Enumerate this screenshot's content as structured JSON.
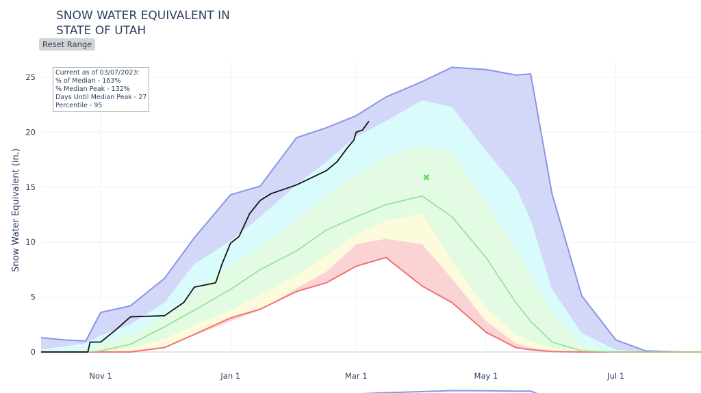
{
  "title_line1": "SNOW WATER EQUIVALENT IN",
  "title_line2": "STATE OF UTAH",
  "reset_button": "Reset Range",
  "annotation": [
    "Current as of 03/07/2023:",
    "% of Median - 163%",
    "% Median Peak - 132%",
    "Days Until Median Peak - 27",
    "Percentile - 95"
  ],
  "chart_data": {
    "type": "area",
    "title": "SNOW WATER EQUIVALENT IN STATE OF UTAH",
    "xlabel": "",
    "ylabel": "Snow Water Equivalent (in.)",
    "xlim": [
      "2022-10-04",
      "2023-08-10"
    ],
    "ylim": [
      0,
      26.5
    ],
    "grid": true,
    "legend": "none",
    "x_ticks": [
      {
        "date": "2022-11-01",
        "label": "Nov 1"
      },
      {
        "date": "2023-01-01",
        "label": "Jan 1"
      },
      {
        "date": "2023-03-01",
        "label": "Mar 1"
      },
      {
        "date": "2023-05-01",
        "label": "May 1"
      },
      {
        "date": "2023-07-01",
        "label": "Jul 1"
      }
    ],
    "y_ticks": [
      0,
      5,
      10,
      15,
      20,
      25
    ],
    "band_x": [
      "2022-10-04",
      "2022-10-15",
      "2022-10-25",
      "2022-11-01",
      "2022-11-15",
      "2022-12-01",
      "2022-12-15",
      "2023-01-01",
      "2023-01-15",
      "2023-02-01",
      "2023-02-15",
      "2023-03-01",
      "2023-03-15",
      "2023-04-01",
      "2023-04-15",
      "2023-05-01",
      "2023-05-15",
      "2023-05-22",
      "2023-06-01",
      "2023-06-15",
      "2023-07-01",
      "2023-07-15",
      "2023-08-01",
      "2023-08-10"
    ],
    "bands": {
      "min": [
        0,
        0,
        0,
        0,
        0,
        0.4,
        1.6,
        3.1,
        3.9,
        5.5,
        6.3,
        7.8,
        8.6,
        6.0,
        4.5,
        1.8,
        0.4,
        0.2,
        0.05,
        0,
        0,
        0,
        0,
        0
      ],
      "p10": [
        0,
        0,
        0,
        0,
        0.1,
        0.5,
        1.5,
        2.8,
        3.8,
        5.8,
        7.3,
        9.8,
        10.3,
        9.8,
        6.7,
        2.8,
        0.8,
        0.4,
        0.1,
        0,
        0,
        0,
        0,
        0
      ],
      "p30": [
        0,
        0,
        0,
        0,
        0.3,
        1.2,
        2.4,
        3.8,
        5.2,
        7.0,
        8.8,
        10.7,
        11.9,
        12.6,
        8.2,
        4.0,
        1.6,
        1.0,
        0.3,
        0,
        0,
        0,
        0,
        0
      ],
      "median": [
        0,
        0,
        0,
        0.1,
        0.7,
        2.3,
        3.8,
        5.7,
        7.5,
        9.2,
        11.1,
        12.3,
        13.4,
        14.2,
        12.3,
        8.6,
        4.5,
        2.8,
        0.9,
        0.1,
        0,
        0,
        0,
        0
      ],
      "p70": [
        0,
        0,
        0.2,
        0.7,
        1.5,
        3.2,
        5.5,
        7.8,
        9.6,
        12.0,
        14.3,
        16.1,
        17.7,
        18.8,
        18.2,
        13.6,
        9.4,
        7.0,
        3.6,
        0.6,
        0,
        0,
        0,
        0
      ],
      "p90": [
        0.2,
        0.5,
        0.8,
        1.5,
        2.5,
        4.5,
        8.0,
        10.1,
        12.3,
        15.2,
        17.3,
        19.6,
        21.0,
        22.9,
        22.3,
        18.3,
        15.0,
        12.0,
        5.7,
        1.7,
        0.2,
        0,
        0,
        0
      ],
      "max": [
        1.3,
        1.1,
        1.0,
        3.6,
        4.2,
        6.7,
        10.4,
        14.3,
        15.1,
        19.5,
        20.4,
        21.5,
        23.2,
        24.6,
        25.9,
        25.7,
        25.2,
        25.3,
        14.4,
        5.1,
        1.1,
        0.1,
        0,
        0
      ]
    },
    "current": {
      "x": [
        "2022-10-04",
        "2022-10-26",
        "2022-10-27",
        "2022-11-01",
        "2022-11-08",
        "2022-11-15",
        "2022-12-01",
        "2022-12-10",
        "2022-12-15",
        "2022-12-25",
        "2022-12-28",
        "2023-01-01",
        "2023-01-05",
        "2023-01-10",
        "2023-01-15",
        "2023-01-20",
        "2023-02-01",
        "2023-02-15",
        "2023-02-20",
        "2023-02-25",
        "2023-02-28",
        "2023-03-01",
        "2023-03-04",
        "2023-03-07"
      ],
      "y": [
        0,
        0,
        0.9,
        0.9,
        2.0,
        3.2,
        3.3,
        4.5,
        5.9,
        6.3,
        8.0,
        9.9,
        10.5,
        12.6,
        13.8,
        14.4,
        15.2,
        16.5,
        17.3,
        18.6,
        19.3,
        20.0,
        20.2,
        21.0
      ]
    },
    "median_peak": {
      "x": "2023-04-03",
      "y": 15.9
    },
    "colors": {
      "max_band": "#d3d7f8",
      "max_line": "#8a93e8",
      "p70_90_band": "#d9fbfb",
      "p30_70_band": "#e3fbe3",
      "p10_30_band": "#fcfcdc",
      "min_10_band": "#fbd3d5",
      "min_line": "#ef7272",
      "median_line": "#90e090",
      "current_line": "#111111",
      "median_peak_marker": "#5edc5e"
    }
  }
}
